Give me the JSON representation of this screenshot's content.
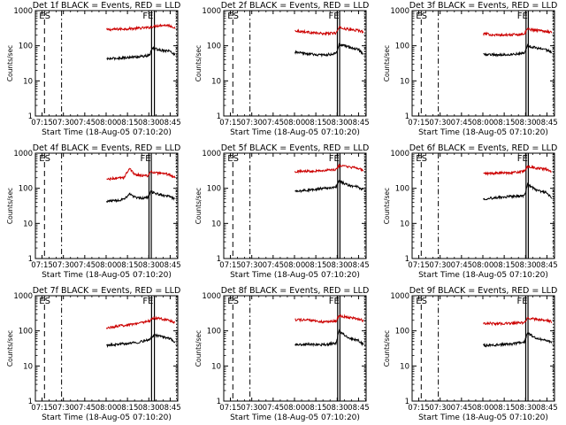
{
  "figure": {
    "background": "#ffffff",
    "axis_color": "#000000",
    "black_series_color": "#000000",
    "red_series_color": "#cc0000",
    "ylabel": "Counts/sec",
    "xlabel": "Start Time (18-Aug-05 07:10:20)",
    "x_tick_labels": [
      "07:15",
      "07:30",
      "07:45",
      "08:00",
      "08:15",
      "08:30",
      "08:45"
    ],
    "y_tick_labels": [
      "1",
      "10",
      "100",
      "1000"
    ],
    "marker_labels": {
      "start": "ES",
      "end": "FE"
    }
  },
  "chart_data": [
    {
      "type": "line",
      "title": "Det 1f BLACK = Events, RED = LLD",
      "x_unit": "minutes after 07:10:20",
      "xlim": [
        0,
        100
      ],
      "ylim": [
        1,
        1000
      ],
      "yscale": "log",
      "markers": {
        "dashed": [
          6.4,
          18.4
        ],
        "solid": [
          81.6,
          83.6
        ],
        "dotted": [
          99.2
        ]
      },
      "series": [
        {
          "color": "red",
          "start": 50,
          "end": 98,
          "points": [
            [
              50,
              285
            ],
            [
              60,
              300
            ],
            [
              70,
              310
            ],
            [
              80,
              330
            ],
            [
              82,
              350
            ],
            [
              88,
              385
            ],
            [
              94,
              380
            ],
            [
              98,
              325
            ]
          ]
        },
        {
          "color": "black",
          "start": 50,
          "end": 98,
          "points": [
            [
              50,
              42
            ],
            [
              60,
              45
            ],
            [
              70,
              48
            ],
            [
              80,
              52
            ],
            [
              82,
              85
            ],
            [
              88,
              75
            ],
            [
              94,
              72
            ],
            [
              98,
              55
            ]
          ]
        }
      ]
    },
    {
      "type": "line",
      "title": "Det 2f BLACK = Events, RED = LLD",
      "x_unit": "minutes after 07:10:20",
      "xlim": [
        0,
        100
      ],
      "ylim": [
        1,
        1000
      ],
      "yscale": "log",
      "markers": {
        "dashed": [
          6.4,
          18.4
        ],
        "solid": [
          79.8,
          81.4
        ],
        "dotted": [
          99.2
        ]
      },
      "series": [
        {
          "color": "red",
          "start": 50,
          "end": 98,
          "points": [
            [
              50,
              270
            ],
            [
              60,
              240
            ],
            [
              70,
              220
            ],
            [
              79,
              230
            ],
            [
              81,
              330
            ],
            [
              88,
              290
            ],
            [
              94,
              275
            ],
            [
              98,
              250
            ]
          ]
        },
        {
          "color": "black",
          "start": 50,
          "end": 98,
          "points": [
            [
              50,
              65
            ],
            [
              60,
              58
            ],
            [
              70,
              54
            ],
            [
              79,
              60
            ],
            [
              81,
              110
            ],
            [
              88,
              90
            ],
            [
              94,
              80
            ],
            [
              98,
              60
            ]
          ]
        }
      ]
    },
    {
      "type": "line",
      "title": "Det 3f BLACK = Events, RED = LLD",
      "x_unit": "minutes after 07:10:20",
      "xlim": [
        0,
        100
      ],
      "ylim": [
        1,
        1000
      ],
      "yscale": "log",
      "markers": {
        "dashed": [
          6.4,
          18.4
        ],
        "solid": [
          80.0,
          81.6
        ],
        "dotted": [
          99.2
        ]
      },
      "series": [
        {
          "color": "red",
          "start": 50,
          "end": 98,
          "points": [
            [
              50,
              220
            ],
            [
              60,
              200
            ],
            [
              70,
              205
            ],
            [
              79,
              215
            ],
            [
              81,
              300
            ],
            [
              88,
              275
            ],
            [
              94,
              260
            ],
            [
              98,
              240
            ]
          ]
        },
        {
          "color": "black",
          "start": 50,
          "end": 98,
          "points": [
            [
              50,
              58
            ],
            [
              60,
              55
            ],
            [
              70,
              57
            ],
            [
              79,
              62
            ],
            [
              81,
              100
            ],
            [
              88,
              85
            ],
            [
              94,
              78
            ],
            [
              98,
              64
            ]
          ]
        }
      ]
    },
    {
      "type": "line",
      "title": "Det 4f BLACK = Events, RED = LLD",
      "x_unit": "minutes after 07:10:20",
      "xlim": [
        0,
        100
      ],
      "ylim": [
        1,
        1000
      ],
      "yscale": "log",
      "markers": {
        "dashed": [
          6.4,
          18.4
        ],
        "solid": [
          79.8,
          81.4
        ],
        "dotted": [
          99.2
        ]
      },
      "series": [
        {
          "color": "red",
          "start": 50,
          "end": 98,
          "points": [
            [
              50,
              180
            ],
            [
              56,
              190
            ],
            [
              62,
              200
            ],
            [
              66,
              360
            ],
            [
              70,
              250
            ],
            [
              75,
              230
            ],
            [
              79,
              230
            ],
            [
              81,
              290
            ],
            [
              88,
              260
            ],
            [
              94,
              250
            ],
            [
              98,
              200
            ]
          ]
        },
        {
          "color": "black",
          "start": 50,
          "end": 98,
          "points": [
            [
              50,
              42
            ],
            [
              56,
              45
            ],
            [
              62,
              48
            ],
            [
              66,
              70
            ],
            [
              70,
              55
            ],
            [
              75,
              52
            ],
            [
              79,
              55
            ],
            [
              81,
              80
            ],
            [
              88,
              65
            ],
            [
              94,
              60
            ],
            [
              98,
              50
            ]
          ]
        }
      ]
    },
    {
      "type": "line",
      "title": "Det 5f BLACK = Events, RED = LLD",
      "x_unit": "minutes after 07:10:20",
      "xlim": [
        0,
        100
      ],
      "ylim": [
        1,
        1000
      ],
      "yscale": "log",
      "markers": {
        "dashed": [
          6.4,
          18.4
        ],
        "solid": [
          80.0,
          81.6
        ],
        "dotted": [
          99.2
        ]
      },
      "series": [
        {
          "color": "red",
          "start": 50,
          "end": 98,
          "points": [
            [
              50,
              300
            ],
            [
              60,
              310
            ],
            [
              70,
              320
            ],
            [
              79,
              340
            ],
            [
              81,
              450
            ],
            [
              88,
              400
            ],
            [
              94,
              380
            ],
            [
              98,
              330
            ]
          ]
        },
        {
          "color": "black",
          "start": 50,
          "end": 98,
          "points": [
            [
              50,
              80
            ],
            [
              60,
              90
            ],
            [
              70,
              100
            ],
            [
              79,
              110
            ],
            [
              81,
              160
            ],
            [
              88,
              120
            ],
            [
              94,
              110
            ],
            [
              98,
              90
            ]
          ]
        }
      ]
    },
    {
      "type": "line",
      "title": "Det 6f BLACK = Events, RED = LLD",
      "x_unit": "minutes after 07:10:20",
      "xlim": [
        0,
        100
      ],
      "ylim": [
        1,
        1000
      ],
      "yscale": "log",
      "markers": {
        "dashed": [
          6.4,
          18.4
        ],
        "solid": [
          80.0,
          81.6
        ],
        "dotted": [
          99.2
        ]
      },
      "series": [
        {
          "color": "red",
          "start": 50,
          "end": 98,
          "points": [
            [
              50,
              260
            ],
            [
              60,
              270
            ],
            [
              70,
              280
            ],
            [
              79,
              300
            ],
            [
              81,
              420
            ],
            [
              88,
              370
            ],
            [
              94,
              350
            ],
            [
              98,
              290
            ]
          ]
        },
        {
          "color": "black",
          "start": 50,
          "end": 98,
          "points": [
            [
              50,
              50
            ],
            [
              60,
              55
            ],
            [
              70,
              58
            ],
            [
              79,
              62
            ],
            [
              81,
              130
            ],
            [
              88,
              85
            ],
            [
              94,
              75
            ],
            [
              98,
              55
            ]
          ]
        }
      ]
    },
    {
      "type": "line",
      "title": "Det 7f BLACK = Events, RED = LLD",
      "x_unit": "minutes after 07:10:20",
      "xlim": [
        0,
        100
      ],
      "ylim": [
        1,
        1000
      ],
      "yscale": "log",
      "markers": {
        "dashed": [
          6.4,
          18.4
        ],
        "solid": [
          81.6,
          83.6
        ],
        "dotted": [
          99.2
        ]
      },
      "series": [
        {
          "color": "red",
          "start": 50,
          "end": 98,
          "points": [
            [
              50,
              120
            ],
            [
              60,
              140
            ],
            [
              70,
              160
            ],
            [
              80,
              190
            ],
            [
              83,
              230
            ],
            [
              88,
              220
            ],
            [
              94,
              200
            ],
            [
              98,
              170
            ]
          ]
        },
        {
          "color": "black",
          "start": 50,
          "end": 98,
          "points": [
            [
              50,
              38
            ],
            [
              60,
              42
            ],
            [
              70,
              46
            ],
            [
              80,
              55
            ],
            [
              83,
              75
            ],
            [
              88,
              70
            ],
            [
              94,
              62
            ],
            [
              98,
              48
            ]
          ]
        }
      ]
    },
    {
      "type": "line",
      "title": "Det 8f BLACK = Events, RED = LLD",
      "x_unit": "minutes after 07:10:20",
      "xlim": [
        0,
        100
      ],
      "ylim": [
        1,
        1000
      ],
      "yscale": "log",
      "markers": {
        "dashed": [
          6.4,
          18.4
        ],
        "solid": [
          80.0,
          81.6
        ],
        "dotted": [
          99.2
        ]
      },
      "series": [
        {
          "color": "red",
          "start": 50,
          "end": 98,
          "points": [
            [
              50,
              210
            ],
            [
              60,
              200
            ],
            [
              70,
              180
            ],
            [
              79,
              190
            ],
            [
              81,
              270
            ],
            [
              88,
              240
            ],
            [
              94,
              225
            ],
            [
              98,
              195
            ]
          ]
        },
        {
          "color": "black",
          "start": 50,
          "end": 98,
          "points": [
            [
              50,
              40
            ],
            [
              60,
              42
            ],
            [
              70,
              40
            ],
            [
              79,
              45
            ],
            [
              81,
              100
            ],
            [
              88,
              60
            ],
            [
              94,
              55
            ],
            [
              98,
              42
            ]
          ]
        }
      ]
    },
    {
      "type": "line",
      "title": "Det 9f BLACK = Events, RED = LLD",
      "x_unit": "minutes after 07:10:20",
      "xlim": [
        0,
        100
      ],
      "ylim": [
        1,
        1000
      ],
      "yscale": "log",
      "markers": {
        "dashed": [
          6.4,
          18.4
        ],
        "solid": [
          79.8,
          81.4
        ],
        "dotted": [
          99.2
        ]
      },
      "series": [
        {
          "color": "red",
          "start": 50,
          "end": 98,
          "points": [
            [
              50,
              165
            ],
            [
              60,
              160
            ],
            [
              70,
              165
            ],
            [
              79,
              170
            ],
            [
              81,
              230
            ],
            [
              88,
              210
            ],
            [
              94,
              200
            ],
            [
              98,
              180
            ]
          ]
        },
        {
          "color": "black",
          "start": 50,
          "end": 98,
          "points": [
            [
              50,
              38
            ],
            [
              60,
              40
            ],
            [
              70,
              42
            ],
            [
              79,
              48
            ],
            [
              81,
              85
            ],
            [
              88,
              60
            ],
            [
              94,
              55
            ],
            [
              98,
              45
            ]
          ]
        }
      ]
    }
  ]
}
